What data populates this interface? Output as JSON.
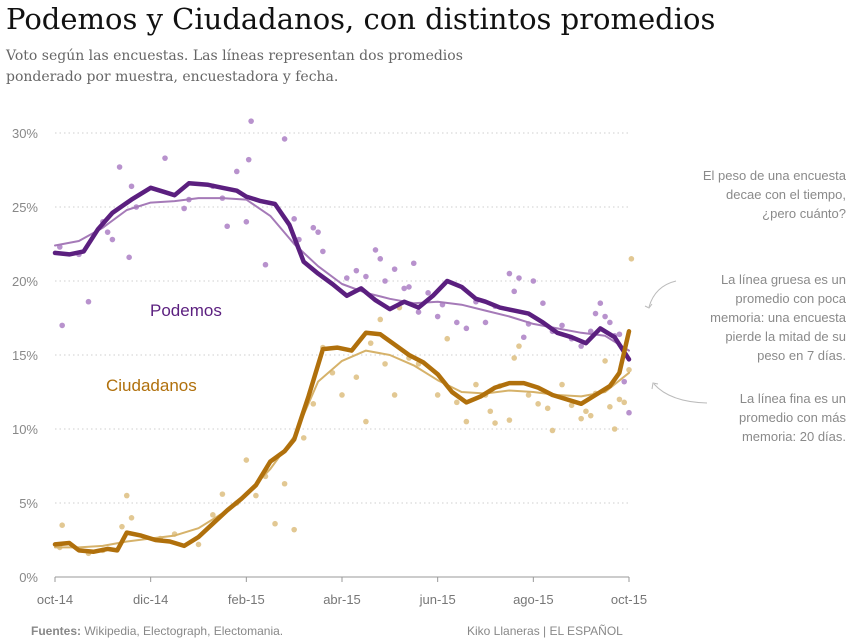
{
  "title": "Podemos y Ciudadanos, con distintos promedios",
  "subtitle_lines": [
    "Voto según las encuestas. Las líneas representan dos promedios",
    "ponderado por muestra, encuestadora y fecha."
  ],
  "annotations": {
    "decay": [
      "El peso de una encuesta",
      "decae con el tiempo,",
      "¿pero cuánto?"
    ],
    "thick": [
      "La línea gruesa es un",
      "promedio con poca",
      "memoria: una encuesta",
      "pierde la mitad de su",
      "peso en 7 días."
    ],
    "thin": [
      "La línea fina es un",
      "promedio con más",
      "memoria: 20 días."
    ]
  },
  "footer": {
    "sources_label": "Fuentes:",
    "sources_text": " Wikipedia, Electograph, Electomania.",
    "credit": "Kiko Llaneras  |  EL ESPAÑOL"
  },
  "chart_data": {
    "type": "line",
    "title": "Podemos y Ciudadanos, con distintos promedios",
    "xlabel": "",
    "ylabel": "",
    "x_unit": "months since 1 oct 2014",
    "xlim": [
      0,
      12
    ],
    "ylim": [
      0,
      30
    ],
    "grid": true,
    "yticks": [
      0,
      5,
      10,
      15,
      20,
      25,
      30
    ],
    "ytick_labels": [
      "0%",
      "5%",
      "10%",
      "15%",
      "20%",
      "25%",
      "30%"
    ],
    "xticks": [
      0,
      2,
      4,
      6,
      8,
      10,
      12
    ],
    "xtick_labels": [
      "oct-14",
      "dic-14",
      "feb-15",
      "abr-15",
      "jun-15",
      "ago-15",
      "oct-15"
    ],
    "series": [
      {
        "name": "Podemos",
        "label": "Podemos",
        "color": "#5b1f7f",
        "light_color": "#a57ab8",
        "dot_color": "#b892cd",
        "thick_avg": [
          [
            0,
            21.9
          ],
          [
            0.3,
            21.8
          ],
          [
            0.6,
            22.0
          ],
          [
            0.9,
            23.5
          ],
          [
            1.2,
            24.6
          ],
          [
            1.6,
            25.5
          ],
          [
            2.0,
            26.3
          ],
          [
            2.3,
            26.0
          ],
          [
            2.5,
            25.8
          ],
          [
            2.8,
            26.6
          ],
          [
            3.2,
            26.5
          ],
          [
            3.5,
            26.3
          ],
          [
            3.8,
            26.1
          ],
          [
            4.0,
            25.7
          ],
          [
            4.3,
            25.4
          ],
          [
            4.6,
            25.2
          ],
          [
            4.9,
            23.8
          ],
          [
            5.2,
            21.3
          ],
          [
            5.5,
            20.5
          ],
          [
            5.8,
            19.8
          ],
          [
            6.1,
            19.0
          ],
          [
            6.4,
            19.5
          ],
          [
            6.7,
            18.7
          ],
          [
            7.0,
            18.1
          ],
          [
            7.3,
            18.6
          ],
          [
            7.6,
            18.2
          ],
          [
            7.9,
            19.0
          ],
          [
            8.2,
            20.0
          ],
          [
            8.5,
            19.6
          ],
          [
            8.8,
            18.8
          ],
          [
            9.0,
            18.6
          ],
          [
            9.3,
            18.2
          ],
          [
            9.6,
            18.0
          ],
          [
            9.9,
            17.8
          ],
          [
            10.2,
            17.2
          ],
          [
            10.5,
            16.5
          ],
          [
            10.8,
            16.2
          ],
          [
            11.1,
            15.8
          ],
          [
            11.4,
            16.8
          ],
          [
            11.7,
            16.2
          ],
          [
            12.0,
            14.7
          ]
        ],
        "thin_avg": [
          [
            0,
            22.4
          ],
          [
            0.5,
            22.7
          ],
          [
            1.0,
            23.6
          ],
          [
            1.5,
            24.8
          ],
          [
            2.0,
            25.3
          ],
          [
            2.5,
            25.4
          ],
          [
            3.0,
            25.6
          ],
          [
            3.5,
            25.6
          ],
          [
            4.0,
            25.5
          ],
          [
            4.5,
            24.4
          ],
          [
            5.0,
            22.5
          ],
          [
            5.5,
            21.0
          ],
          [
            6.0,
            19.8
          ],
          [
            6.5,
            19.2
          ],
          [
            7.0,
            18.8
          ],
          [
            7.5,
            18.5
          ],
          [
            8.0,
            18.6
          ],
          [
            8.5,
            18.4
          ],
          [
            9.0,
            18.0
          ],
          [
            9.5,
            17.6
          ],
          [
            10.0,
            17.1
          ],
          [
            10.5,
            16.8
          ],
          [
            11.0,
            16.5
          ],
          [
            11.5,
            16.3
          ],
          [
            12.0,
            15.3
          ]
        ],
        "polls": [
          [
            0.1,
            22.3
          ],
          [
            0.15,
            17.0
          ],
          [
            0.5,
            21.8
          ],
          [
            0.7,
            18.6
          ],
          [
            1.0,
            24.0
          ],
          [
            1.1,
            23.3
          ],
          [
            1.2,
            22.8
          ],
          [
            1.35,
            27.7
          ],
          [
            1.55,
            21.6
          ],
          [
            1.6,
            26.4
          ],
          [
            1.7,
            25.0
          ],
          [
            2.3,
            28.3
          ],
          [
            2.7,
            24.9
          ],
          [
            2.8,
            25.5
          ],
          [
            3.3,
            26.4
          ],
          [
            3.5,
            25.6
          ],
          [
            3.6,
            23.7
          ],
          [
            3.8,
            27.4
          ],
          [
            4.0,
            24.0
          ],
          [
            4.05,
            28.2
          ],
          [
            4.1,
            30.8
          ],
          [
            4.4,
            21.1
          ],
          [
            4.8,
            29.6
          ],
          [
            5.0,
            24.2
          ],
          [
            5.1,
            22.8
          ],
          [
            5.4,
            23.6
          ],
          [
            5.5,
            23.3
          ],
          [
            5.6,
            22.0
          ],
          [
            6.1,
            20.2
          ],
          [
            6.3,
            20.7
          ],
          [
            6.5,
            20.3
          ],
          [
            6.7,
            22.1
          ],
          [
            6.8,
            21.5
          ],
          [
            6.9,
            20.0
          ],
          [
            7.1,
            20.8
          ],
          [
            7.3,
            19.5
          ],
          [
            7.4,
            19.6
          ],
          [
            7.5,
            21.2
          ],
          [
            7.6,
            17.9
          ],
          [
            7.8,
            19.2
          ],
          [
            8.0,
            17.6
          ],
          [
            8.1,
            18.4
          ],
          [
            8.4,
            17.2
          ],
          [
            8.6,
            16.8
          ],
          [
            8.8,
            18.6
          ],
          [
            9.0,
            17.2
          ],
          [
            9.2,
            18.3
          ],
          [
            9.5,
            20.5
          ],
          [
            9.6,
            19.3
          ],
          [
            9.7,
            20.2
          ],
          [
            9.8,
            16.2
          ],
          [
            9.9,
            17.1
          ],
          [
            10.0,
            20.0
          ],
          [
            10.2,
            18.5
          ],
          [
            10.4,
            16.6
          ],
          [
            10.6,
            17.0
          ],
          [
            10.8,
            16.1
          ],
          [
            11.0,
            15.6
          ],
          [
            11.2,
            16.6
          ],
          [
            11.3,
            17.8
          ],
          [
            11.4,
            18.5
          ],
          [
            11.5,
            17.6
          ],
          [
            11.6,
            17.2
          ],
          [
            11.7,
            16.3
          ],
          [
            11.8,
            16.4
          ],
          [
            11.9,
            13.2
          ],
          [
            12.0,
            11.1
          ]
        ]
      },
      {
        "name": "Ciudadanos",
        "label": "Ciudadanos",
        "color": "#b0700c",
        "light_color": "#d6b26a",
        "dot_color": "#e2c893",
        "thick_avg": [
          [
            0,
            2.2
          ],
          [
            0.3,
            2.3
          ],
          [
            0.5,
            1.8
          ],
          [
            0.8,
            1.7
          ],
          [
            1.1,
            1.9
          ],
          [
            1.3,
            1.8
          ],
          [
            1.5,
            3.0
          ],
          [
            1.8,
            2.8
          ],
          [
            2.1,
            2.5
          ],
          [
            2.4,
            2.4
          ],
          [
            2.7,
            2.1
          ],
          [
            3.0,
            2.7
          ],
          [
            3.3,
            3.6
          ],
          [
            3.6,
            4.5
          ],
          [
            3.9,
            5.3
          ],
          [
            4.2,
            6.2
          ],
          [
            4.5,
            7.8
          ],
          [
            4.8,
            8.5
          ],
          [
            5.0,
            9.3
          ],
          [
            5.3,
            12.2
          ],
          [
            5.6,
            15.4
          ],
          [
            5.9,
            15.5
          ],
          [
            6.2,
            15.3
          ],
          [
            6.5,
            16.5
          ],
          [
            6.8,
            16.4
          ],
          [
            7.1,
            15.7
          ],
          [
            7.4,
            15.0
          ],
          [
            7.7,
            14.5
          ],
          [
            8.0,
            13.7
          ],
          [
            8.3,
            12.5
          ],
          [
            8.6,
            11.8
          ],
          [
            8.9,
            12.2
          ],
          [
            9.2,
            12.8
          ],
          [
            9.5,
            13.1
          ],
          [
            9.8,
            13.1
          ],
          [
            10.1,
            12.8
          ],
          [
            10.4,
            12.3
          ],
          [
            10.7,
            12.0
          ],
          [
            11.0,
            11.7
          ],
          [
            11.3,
            12.3
          ],
          [
            11.6,
            12.9
          ],
          [
            11.8,
            13.8
          ],
          [
            12.0,
            16.6
          ]
        ],
        "thin_avg": [
          [
            0,
            2.0
          ],
          [
            0.5,
            2.0
          ],
          [
            1.0,
            2.1
          ],
          [
            1.5,
            2.4
          ],
          [
            2.0,
            2.6
          ],
          [
            2.5,
            2.8
          ],
          [
            3.0,
            3.3
          ],
          [
            3.5,
            4.3
          ],
          [
            4.0,
            5.6
          ],
          [
            4.5,
            7.3
          ],
          [
            5.0,
            9.5
          ],
          [
            5.5,
            13.2
          ],
          [
            6.0,
            14.6
          ],
          [
            6.5,
            15.3
          ],
          [
            7.0,
            15.0
          ],
          [
            7.5,
            14.3
          ],
          [
            8.0,
            13.3
          ],
          [
            8.5,
            12.5
          ],
          [
            9.0,
            12.4
          ],
          [
            9.5,
            12.6
          ],
          [
            10.0,
            12.5
          ],
          [
            10.5,
            12.3
          ],
          [
            11.0,
            12.2
          ],
          [
            11.5,
            12.5
          ],
          [
            12.0,
            13.8
          ]
        ],
        "polls": [
          [
            0.1,
            2.0
          ],
          [
            0.15,
            3.5
          ],
          [
            0.7,
            1.6
          ],
          [
            1.0,
            1.8
          ],
          [
            1.4,
            3.4
          ],
          [
            1.5,
            5.5
          ],
          [
            1.6,
            4.0
          ],
          [
            2.2,
            2.6
          ],
          [
            2.5,
            2.9
          ],
          [
            3.0,
            2.2
          ],
          [
            3.3,
            4.2
          ],
          [
            3.5,
            5.6
          ],
          [
            3.8,
            5.0
          ],
          [
            4.0,
            7.9
          ],
          [
            4.2,
            5.5
          ],
          [
            4.4,
            6.8
          ],
          [
            4.6,
            3.6
          ],
          [
            4.8,
            6.3
          ],
          [
            5.0,
            3.2
          ],
          [
            5.2,
            9.4
          ],
          [
            5.4,
            11.7
          ],
          [
            5.6,
            15.5
          ],
          [
            5.8,
            13.8
          ],
          [
            6.0,
            12.3
          ],
          [
            6.3,
            13.5
          ],
          [
            6.5,
            10.5
          ],
          [
            6.6,
            15.8
          ],
          [
            6.8,
            17.4
          ],
          [
            6.9,
            14.4
          ],
          [
            7.1,
            12.3
          ],
          [
            7.2,
            18.2
          ],
          [
            7.4,
            14.8
          ],
          [
            7.6,
            14.4
          ],
          [
            8.0,
            12.3
          ],
          [
            8.2,
            16.1
          ],
          [
            8.4,
            11.8
          ],
          [
            8.6,
            10.5
          ],
          [
            8.8,
            13.0
          ],
          [
            9.0,
            12.3
          ],
          [
            9.1,
            11.2
          ],
          [
            9.2,
            10.4
          ],
          [
            9.3,
            12.9
          ],
          [
            9.5,
            10.6
          ],
          [
            9.6,
            14.8
          ],
          [
            9.7,
            15.6
          ],
          [
            9.9,
            12.3
          ],
          [
            10.1,
            11.7
          ],
          [
            10.3,
            11.4
          ],
          [
            10.4,
            9.9
          ],
          [
            10.6,
            13.0
          ],
          [
            10.8,
            11.6
          ],
          [
            11.0,
            10.7
          ],
          [
            11.1,
            11.2
          ],
          [
            11.2,
            10.9
          ],
          [
            11.3,
            12.4
          ],
          [
            11.5,
            14.6
          ],
          [
            11.6,
            11.5
          ],
          [
            11.7,
            10.0
          ],
          [
            11.8,
            12.0
          ],
          [
            11.9,
            11.8
          ],
          [
            12.0,
            14.0
          ],
          [
            12.05,
            21.5
          ]
        ]
      }
    ]
  }
}
